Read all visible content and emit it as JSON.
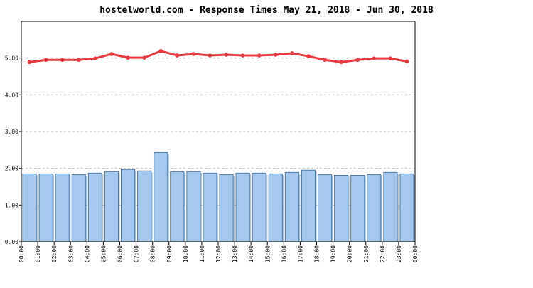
{
  "chart_data": {
    "type": "bar",
    "title": "hostelworld.com - Response Times May 21, 2018 - Jun 30, 2018",
    "categories": [
      "00:00",
      "01:00",
      "02:00",
      "03:00",
      "04:00",
      "05:00",
      "06:00",
      "07:00",
      "08:00",
      "09:00",
      "10:00",
      "11:00",
      "12:00",
      "13:00",
      "14:00",
      "15:00",
      "16:00",
      "17:00",
      "18:00",
      "19:00",
      "20:00",
      "21:00",
      "22:00",
      "23:00"
    ],
    "x_tick_labels": [
      "00:00",
      "01:00",
      "02:00",
      "03:00",
      "04:00",
      "05:00",
      "06:00",
      "07:00",
      "08:00",
      "09:00",
      "10:00",
      "11:00",
      "12:00",
      "13:00",
      "14:00",
      "15:00",
      "16:00",
      "17:00",
      "18:00",
      "19:00",
      "20:00",
      "21:00",
      "22:00",
      "23:00",
      "00:00"
    ],
    "series": [
      {
        "type": "bar",
        "values": [
          1.85,
          1.85,
          1.85,
          1.83,
          1.87,
          1.91,
          1.97,
          1.93,
          2.43,
          1.91,
          1.91,
          1.87,
          1.83,
          1.87,
          1.87,
          1.85,
          1.89,
          1.95,
          1.83,
          1.81,
          1.81,
          1.83,
          1.89,
          1.85
        ],
        "color": "#a4c8ee",
        "edge_color": "#4a7aa8"
      },
      {
        "type": "line",
        "values": [
          4.89,
          4.95,
          4.95,
          4.95,
          4.99,
          5.11,
          5.01,
          5.01,
          5.19,
          5.07,
          5.11,
          5.07,
          5.09,
          5.07,
          5.07,
          5.09,
          5.13,
          5.05,
          4.95,
          4.89,
          4.95,
          4.99,
          4.99,
          4.91
        ],
        "color": "#e8393f"
      }
    ],
    "ylim": [
      0,
      6
    ],
    "y_ticks": [
      0,
      1,
      2,
      3,
      4,
      5
    ],
    "y_tick_labels": [
      "0.00",
      "1.00",
      "2.00",
      "3.00",
      "4.00",
      "5.00"
    ],
    "grid": true,
    "xlabel": "",
    "ylabel": ""
  }
}
